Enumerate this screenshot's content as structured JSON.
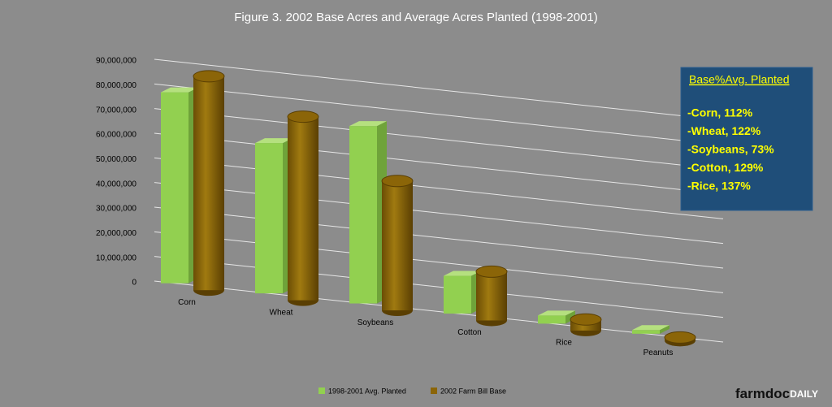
{
  "chart_data": {
    "type": "bar3d",
    "title": "Figure 3. 2002 Base Acres and Average Acres Planted (1998-2001)",
    "categories": [
      "Corn",
      "Wheat",
      "Soybeans",
      "Cotton",
      "Rice",
      "Peanuts"
    ],
    "series": [
      {
        "name": "1998-2001 Avg. Planted",
        "color": "#92d050",
        "values": [
          77500000,
          61000000,
          72000000,
          15300000,
          3300000,
          1500000
        ]
      },
      {
        "name": "2002 Farm Bill Base",
        "color": "#8b6508",
        "values": [
          86800000,
          74500000,
          52500000,
          19800000,
          4500000,
          1300000
        ]
      }
    ],
    "ylim": [
      0,
      90000000
    ],
    "yticks": [
      0,
      {
        "value": 10000000,
        "label": "10,000,000"
      },
      {
        "value": 20000000,
        "label": "20,000,000"
      },
      {
        "value": 30000000,
        "label": "30,000,000"
      },
      {
        "value": 40000000,
        "label": "40,000,000"
      },
      {
        "value": 50000000,
        "label": "50,000,000"
      },
      {
        "value": 60000000,
        "label": "60,000,000"
      },
      {
        "value": 70000000,
        "label": "70,000,000"
      },
      {
        "value": 80000000,
        "label": "80,000,000"
      },
      {
        "value": 90000000,
        "label": "90,000,000"
      }
    ],
    "grid": true,
    "legend": "bottom",
    "annotation": {
      "title": "Base%Avg. Planted",
      "lines": [
        "-Corn, 112%",
        "-Wheat, 122%",
        "-Soybeans, 73%",
        "-Cotton, 129%",
        "-Rice, 137%"
      ]
    }
  },
  "branding": [
    "farmdoc",
    "DAILY"
  ]
}
